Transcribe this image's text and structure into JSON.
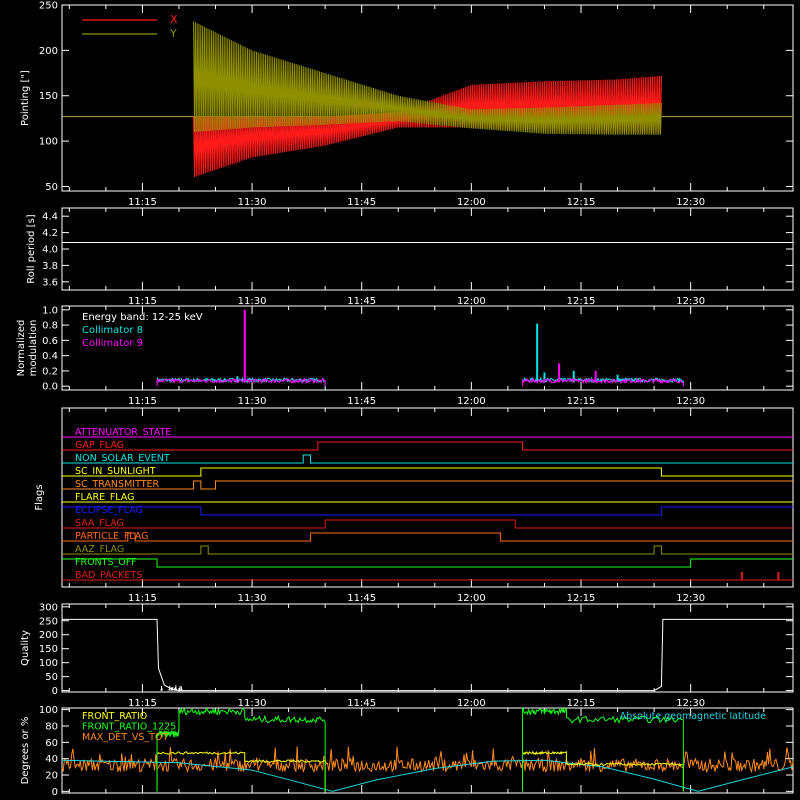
{
  "figure": {
    "x_tick_labels": [
      "11:15",
      "11:30",
      "11:45",
      "12:00",
      "12:15",
      "12:30"
    ]
  },
  "chart_data": [
    {
      "id": "pointing",
      "type": "line",
      "ylabel": "Pointing [\"]",
      "ylim": [
        45,
        250
      ],
      "y_ticks": [
        50,
        100,
        150,
        200,
        250
      ],
      "xlim": [
        "11:04",
        "12:44"
      ],
      "legend_position": "top-left",
      "series": [
        {
          "name": "X",
          "color": "#ff1a1a",
          "baseline": 127,
          "segment": [
            "11:22",
            "12:26"
          ],
          "envelope": [
            {
              "t": "11:22",
              "min": 60,
              "max": 127
            },
            {
              "t": "11:30",
              "min": 82,
              "max": 127
            },
            {
              "t": "11:40",
              "min": 95,
              "max": 127
            },
            {
              "t": "11:50",
              "min": 115,
              "max": 132
            },
            {
              "t": "12:00",
              "min": 115,
              "max": 162
            },
            {
              "t": "12:10",
              "min": 112,
              "max": 166
            },
            {
              "t": "12:20",
              "min": 110,
              "max": 168
            },
            {
              "t": "12:26",
              "min": 110,
              "max": 172
            }
          ]
        },
        {
          "name": "Y",
          "color": "#8f8f00",
          "baseline": 127,
          "segment": [
            "11:22",
            "12:26"
          ],
          "envelope": [
            {
              "t": "11:22",
              "min": 110,
              "max": 232
            },
            {
              "t": "11:30",
              "min": 115,
              "max": 200
            },
            {
              "t": "11:40",
              "min": 118,
              "max": 175
            },
            {
              "t": "11:50",
              "min": 122,
              "max": 150
            },
            {
              "t": "12:00",
              "min": 114,
              "max": 135
            },
            {
              "t": "12:10",
              "min": 108,
              "max": 137
            },
            {
              "t": "12:20",
              "min": 107,
              "max": 140
            },
            {
              "t": "12:26",
              "min": 107,
              "max": 142
            }
          ]
        }
      ]
    },
    {
      "id": "roll",
      "type": "line",
      "ylabel": "Roll period [s]",
      "ylim": [
        3.5,
        4.5
      ],
      "y_ticks": [
        3.6,
        3.8,
        4.0,
        4.2,
        4.4
      ],
      "series": [
        {
          "color": "#ffffff",
          "constant": 4.08,
          "segment": [
            "11:04",
            "12:44"
          ]
        }
      ]
    },
    {
      "id": "modulation",
      "type": "line",
      "ylabel": "Normalized modulation",
      "ylim": [
        -0.05,
        1.05
      ],
      "y_ticks": [
        0.0,
        0.2,
        0.4,
        0.6,
        0.8,
        1.0
      ],
      "annotation": "Energy band: 12-25 keV",
      "legend_position": "top-left",
      "series": [
        {
          "name": "Collimator 8",
          "color": "#00e5e5",
          "segments": [
            [
              "11:17",
              "11:40"
            ],
            [
              "12:07",
              "12:29"
            ]
          ],
          "base_level": 0.08,
          "spikes": [
            {
              "t": "11:28",
              "v": 0.13
            },
            {
              "t": "12:09",
              "v": 0.82
            },
            {
              "t": "12:10",
              "v": 0.18
            },
            {
              "t": "12:14",
              "v": 0.2
            },
            {
              "t": "12:20",
              "v": 0.15
            }
          ]
        },
        {
          "name": "Collimator 9",
          "color": "#ff00ff",
          "segments": [
            [
              "11:17",
              "11:40"
            ],
            [
              "12:07",
              "12:29"
            ]
          ],
          "base_level": 0.07,
          "spikes": [
            {
              "t": "11:29",
              "v": 1.0
            },
            {
              "t": "12:12",
              "v": 0.3
            },
            {
              "t": "12:17",
              "v": 0.2
            }
          ]
        }
      ]
    },
    {
      "id": "flags",
      "type": "line",
      "ylabel": "Flags",
      "flags": [
        {
          "name": "ATTENUATOR_STATE",
          "color": "#ff00ff",
          "level": 0,
          "transitions": []
        },
        {
          "name": "GAP_FLAG",
          "color": "#ff1a1a",
          "level": 0,
          "transitions": [
            "11:39",
            "12:07"
          ]
        },
        {
          "name": "NON_SOLAR_EVENT",
          "color": "#00e5e5",
          "level": 0,
          "transitions": [
            "11:37",
            "11:38"
          ]
        },
        {
          "name": "SC_IN_SUNLIGHT",
          "color": "#ffff00",
          "level": 0,
          "transitions": [
            "11:23",
            "12:26"
          ]
        },
        {
          "name": "SC_TRANSMITTER",
          "color": "#ff8c1a",
          "level": 0,
          "transitions": [
            "11:22",
            "11:23",
            "11:25"
          ]
        },
        {
          "name": "FLARE_FLAG",
          "color": "#ffff00",
          "level": 0,
          "transitions": []
        },
        {
          "name": "ECLIPSE_FLAG",
          "color": "#1a1aff",
          "level": 1,
          "transitions": [
            "11:23",
            "12:26"
          ]
        },
        {
          "name": "SAA_FLAG",
          "color": "#e01a1a",
          "level": 0,
          "transitions": [
            "11:40",
            "12:06"
          ]
        },
        {
          "name": "PARTICLE_FLAG",
          "color": "#ff6a1a",
          "level": 0,
          "transitions": [
            "11:13",
            "11:14",
            "11:38",
            "12:04"
          ]
        },
        {
          "name": "AAZ_FLAG",
          "color": "#8f8f00",
          "level": 0,
          "transitions": [
            "11:23",
            "11:24",
            "12:25",
            "12:26"
          ]
        },
        {
          "name": "FRONTS_OFF",
          "color": "#1aff1a",
          "level": 1,
          "transitions": [
            "11:17",
            "12:30"
          ]
        },
        {
          "name": "BAD_PACKETS",
          "color": "#e01a1a",
          "level": 0,
          "spikes": [
            "12:37",
            "12:42"
          ]
        }
      ]
    },
    {
      "id": "quality",
      "type": "line",
      "ylabel": "Quality",
      "ylim": [
        -5,
        310
      ],
      "y_ticks": [
        0,
        50,
        100,
        150,
        200,
        250,
        300
      ],
      "series": [
        {
          "color": "#ffffff",
          "points": [
            {
              "t": "11:04",
              "v": 255
            },
            {
              "t": "11:17",
              "v": 255
            },
            {
              "t": "11:17.2",
              "v": 80
            },
            {
              "t": "11:18",
              "v": 20
            },
            {
              "t": "11:19",
              "v": 5
            },
            {
              "t": "11:20",
              "v": 0
            },
            {
              "t": "12:25",
              "v": 0
            },
            {
              "t": "12:26",
              "v": 15
            },
            {
              "t": "12:26.2",
              "v": 255
            },
            {
              "t": "12:44",
              "v": 255
            }
          ]
        }
      ]
    },
    {
      "id": "ratios",
      "type": "line",
      "ylabel": "Degrees or %",
      "ylim": [
        -2,
        102
      ],
      "y_ticks": [
        0,
        20,
        40,
        60,
        80,
        100
      ],
      "series": [
        {
          "name": "FRONT_RATIO",
          "color": "#ffff00",
          "segments": [
            {
              "from": "11:17",
              "to": "11:29",
              "level": 47
            },
            {
              "from": "11:29",
              "to": "11:40",
              "level": 37
            },
            {
              "from": "12:07",
              "to": "12:13",
              "level": 47
            },
            {
              "from": "12:13",
              "to": "12:29",
              "level": 33
            }
          ]
        },
        {
          "name": "FRONT_RATIO_1225",
          "color": "#1aff1a",
          "segments": [
            {
              "from": "11:17",
              "to": "11:20",
              "level": 70
            },
            {
              "from": "11:20",
              "to": "11:29",
              "level": 98
            },
            {
              "from": "11:29",
              "to": "11:40",
              "level": 88
            },
            {
              "from": "12:07",
              "to": "12:13",
              "level": 98
            },
            {
              "from": "12:13",
              "to": "12:29",
              "level": 88
            }
          ]
        },
        {
          "name": "MAX_DET_VS_TOT",
          "color": "#ff8c1a",
          "noise_base": 32,
          "noise_amp": 8
        },
        {
          "name": "Absolute geomagnetic latitude",
          "color": "#1ad6e0",
          "points": [
            {
              "t": "11:04",
              "v": 38
            },
            {
              "t": "11:20",
              "v": 35
            },
            {
              "t": "11:30",
              "v": 26
            },
            {
              "t": "11:36",
              "v": 12
            },
            {
              "t": "11:41",
              "v": 0
            },
            {
              "t": "11:47",
              "v": 14
            },
            {
              "t": "11:55",
              "v": 28
            },
            {
              "t": "12:03",
              "v": 37
            },
            {
              "t": "12:10",
              "v": 38
            },
            {
              "t": "12:18",
              "v": 30
            },
            {
              "t": "12:25",
              "v": 15
            },
            {
              "t": "12:31",
              "v": 0
            },
            {
              "t": "12:37",
              "v": 14
            },
            {
              "t": "12:44",
              "v": 30
            }
          ]
        }
      ]
    }
  ]
}
